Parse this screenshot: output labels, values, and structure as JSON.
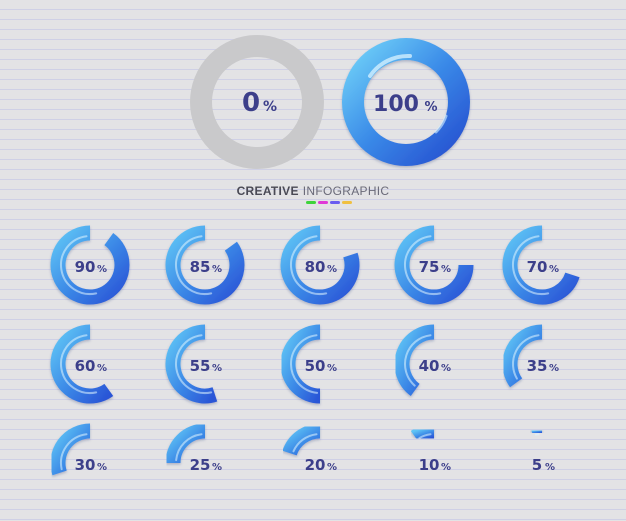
{
  "title": {
    "word1": "CREATIVE",
    "word2": "INFOGRAPHIC"
  },
  "title_dot_colors": [
    "#3fd33b",
    "#e03ad7",
    "#6a5cf0",
    "#f0c040"
  ],
  "big": [
    {
      "value": 0,
      "label": "0",
      "unit": "%"
    },
    {
      "value": 100,
      "label": "100",
      "unit": "%"
    }
  ],
  "rings": [
    {
      "value": 90,
      "label": "90",
      "unit": "%"
    },
    {
      "value": 85,
      "label": "85",
      "unit": "%"
    },
    {
      "value": 80,
      "label": "80",
      "unit": "%"
    },
    {
      "value": 75,
      "label": "75",
      "unit": "%"
    },
    {
      "value": 70,
      "label": "70",
      "unit": "%"
    },
    {
      "value": 60,
      "label": "60",
      "unit": "%"
    },
    {
      "value": 55,
      "label": "55",
      "unit": "%"
    },
    {
      "value": 50,
      "label": "50",
      "unit": "%"
    },
    {
      "value": 40,
      "label": "40",
      "unit": "%"
    },
    {
      "value": 35,
      "label": "35",
      "unit": "%"
    },
    {
      "value": 30,
      "label": "30",
      "unit": "%"
    },
    {
      "value": 25,
      "label": "25",
      "unit": "%"
    },
    {
      "value": 20,
      "label": "20",
      "unit": "%"
    },
    {
      "value": 10,
      "label": "10",
      "unit": "%"
    },
    {
      "value": 5,
      "label": "5",
      "unit": "%"
    }
  ],
  "colors": {
    "ring_light": "#5fc4f5",
    "ring_dark": "#2a54d6",
    "empty_ring": "#c9c9cb",
    "text": "#3c3f8a"
  }
}
